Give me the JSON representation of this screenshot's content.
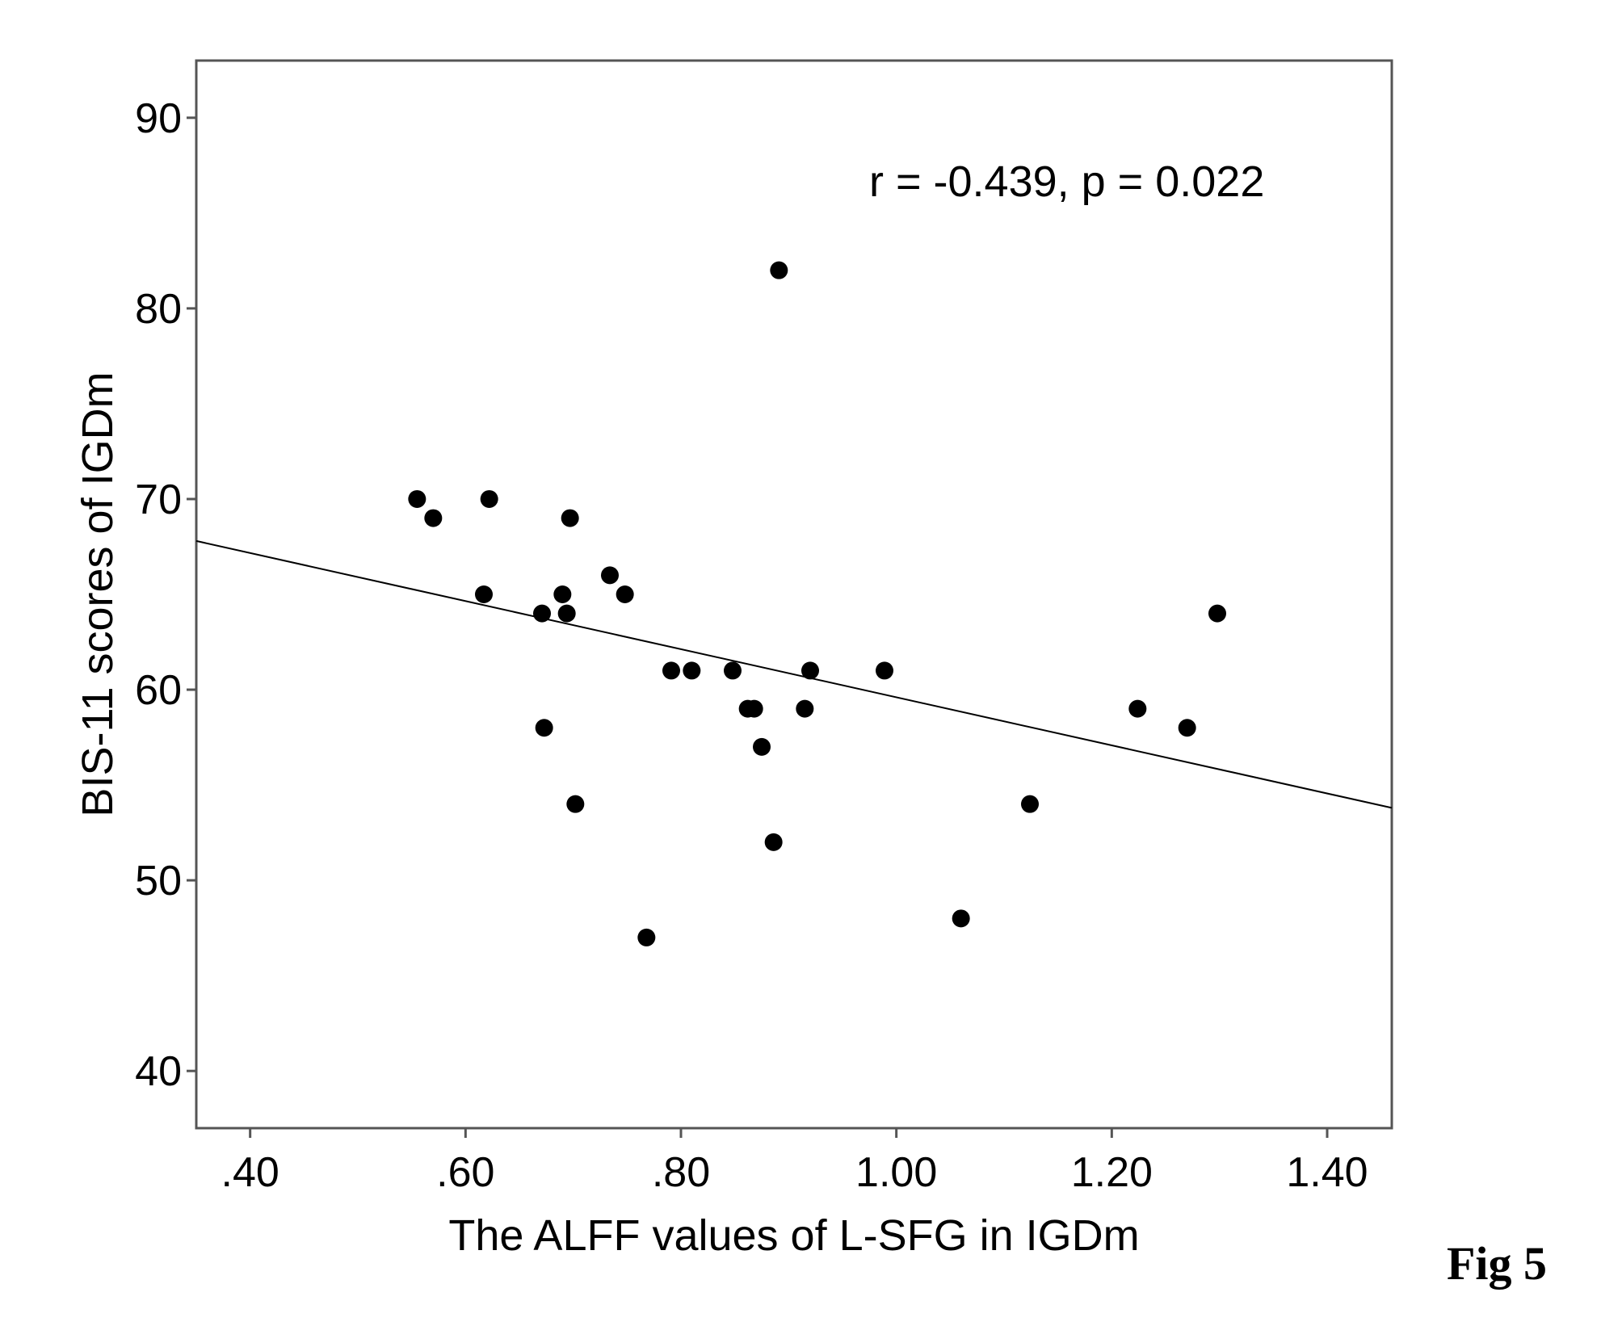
{
  "chart_data": {
    "type": "scatter",
    "xlabel": "The ALFF values of L-SFG in IGDm",
    "ylabel": "BIS-11 scores of IGDm",
    "xlim": [
      0.35,
      1.46
    ],
    "ylim": [
      37,
      93
    ],
    "x_ticks": [
      0.4,
      0.6,
      0.8,
      1.0,
      1.2,
      1.4
    ],
    "x_tick_labels": [
      ".40",
      ".60",
      ".80",
      "1.00",
      "1.20",
      "1.40"
    ],
    "y_ticks": [
      40,
      50,
      60,
      70,
      80,
      90
    ],
    "y_tick_labels": [
      "40",
      "50",
      "60",
      "70",
      "80",
      "90"
    ],
    "grid": false,
    "annotation": "r = -0.439, p = 0.022",
    "fit_line": {
      "x": [
        0.35,
        1.46
      ],
      "y": [
        67.8,
        53.8
      ]
    },
    "points": [
      {
        "x": 0.555,
        "y": 70
      },
      {
        "x": 0.57,
        "y": 69
      },
      {
        "x": 0.617,
        "y": 65
      },
      {
        "x": 0.622,
        "y": 70
      },
      {
        "x": 0.671,
        "y": 64
      },
      {
        "x": 0.673,
        "y": 58
      },
      {
        "x": 0.69,
        "y": 65
      },
      {
        "x": 0.694,
        "y": 64
      },
      {
        "x": 0.697,
        "y": 69
      },
      {
        "x": 0.702,
        "y": 54
      },
      {
        "x": 0.734,
        "y": 66
      },
      {
        "x": 0.748,
        "y": 65
      },
      {
        "x": 0.768,
        "y": 47
      },
      {
        "x": 0.791,
        "y": 61
      },
      {
        "x": 0.81,
        "y": 61
      },
      {
        "x": 0.848,
        "y": 61
      },
      {
        "x": 0.862,
        "y": 59
      },
      {
        "x": 0.868,
        "y": 59
      },
      {
        "x": 0.875,
        "y": 57
      },
      {
        "x": 0.886,
        "y": 52
      },
      {
        "x": 0.891,
        "y": 82
      },
      {
        "x": 0.915,
        "y": 59
      },
      {
        "x": 0.92,
        "y": 61
      },
      {
        "x": 0.989,
        "y": 61
      },
      {
        "x": 1.06,
        "y": 48
      },
      {
        "x": 1.124,
        "y": 54
      },
      {
        "x": 1.224,
        "y": 59
      },
      {
        "x": 1.27,
        "y": 58
      },
      {
        "x": 1.298,
        "y": 64
      }
    ]
  },
  "figure_label": "Fig 5"
}
